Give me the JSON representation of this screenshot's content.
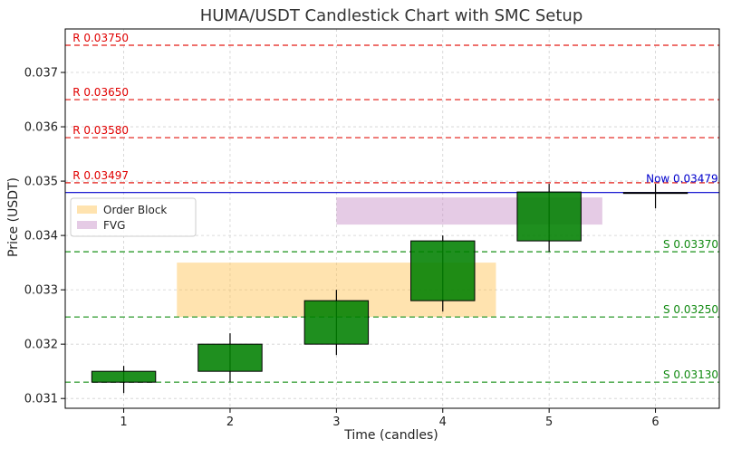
{
  "chart_data": {
    "type": "candlestick",
    "title": "HUMA/USDT Candlestick Chart with SMC Setup",
    "xlabel": "Time (candles)",
    "ylabel": "Price (USDT)",
    "xlim": [
      0.45,
      6.6
    ],
    "ylim": [
      0.03082,
      0.0378
    ],
    "x_ticks": [
      1,
      2,
      3,
      4,
      5,
      6
    ],
    "y_ticks": [
      0.031,
      0.032,
      0.033,
      0.034,
      0.035,
      0.036,
      0.037
    ],
    "y_tick_labels": [
      "0.031",
      "0.032",
      "0.033",
      "0.034",
      "0.035",
      "0.036",
      "0.037"
    ],
    "grid": true,
    "candles": [
      {
        "x": 1,
        "open": 0.0313,
        "close": 0.0315,
        "high": 0.0316,
        "low": 0.0311,
        "color": "#008000"
      },
      {
        "x": 2,
        "open": 0.0315,
        "close": 0.032,
        "high": 0.0322,
        "low": 0.0313,
        "color": "#008000"
      },
      {
        "x": 3,
        "open": 0.032,
        "close": 0.0328,
        "high": 0.033,
        "low": 0.0318,
        "color": "#008000"
      },
      {
        "x": 4,
        "open": 0.0328,
        "close": 0.0339,
        "high": 0.034,
        "low": 0.0326,
        "color": "#008000"
      },
      {
        "x": 5,
        "open": 0.0339,
        "close": 0.0348,
        "high": 0.03495,
        "low": 0.0337,
        "color": "#008000"
      },
      {
        "x": 6,
        "open": 0.03479,
        "close": 0.03479,
        "high": 0.03495,
        "low": 0.0345,
        "color": "#008000"
      }
    ],
    "resistance_levels": [
      {
        "value": 0.0375,
        "label": "R 0.03750"
      },
      {
        "value": 0.0365,
        "label": "R 0.03650"
      },
      {
        "value": 0.0358,
        "label": "R 0.03580"
      },
      {
        "value": 0.03497,
        "label": "R 0.03497"
      }
    ],
    "support_levels": [
      {
        "value": 0.0337,
        "label": "S 0.03370"
      },
      {
        "value": 0.0325,
        "label": "S 0.03250"
      },
      {
        "value": 0.0313,
        "label": "S 0.03130"
      }
    ],
    "current_price": {
      "value": 0.03479,
      "label": "Now 0.03479",
      "color": "#0000cc"
    },
    "zones": [
      {
        "name": "Order Block",
        "x_start": 1.5,
        "x_end": 4.5,
        "y_low": 0.0325,
        "y_high": 0.0335,
        "color": "#ffc04d"
      },
      {
        "name": "FVG",
        "x_start": 3.0,
        "x_end": 5.5,
        "y_low": 0.0342,
        "y_high": 0.0347,
        "color": "#c58bc5"
      }
    ],
    "legend": {
      "placement": "upper-left",
      "entries": [
        "Order Block",
        "FVG"
      ]
    },
    "colors": {
      "resistance": "#e8413c",
      "support": "#3fa33f",
      "support_label": "#118a11",
      "resistance_label": "#e00000"
    }
  }
}
